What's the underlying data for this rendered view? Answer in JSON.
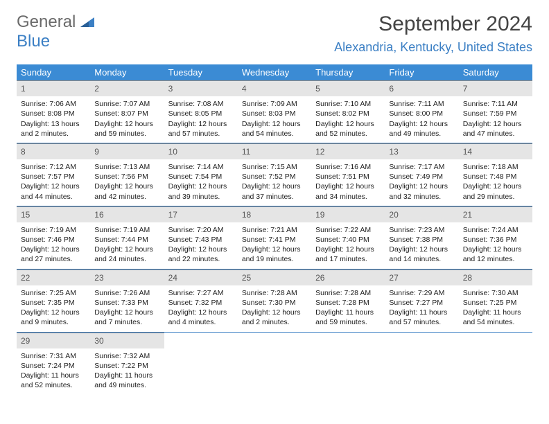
{
  "logo": {
    "word1": "General",
    "word2": "Blue",
    "color1": "#6a6a6a",
    "color2": "#3b7fc4"
  },
  "title": "September 2024",
  "location": "Alexandria, Kentucky, United States",
  "colors": {
    "header_bg": "#3b8bd4",
    "header_text": "#ffffff",
    "accent": "#3b7fc4",
    "daynum_bg": "#e5e5e5",
    "body_text": "#222222",
    "background": "#ffffff"
  },
  "fonts": {
    "title_size": 30,
    "location_size": 18,
    "dayheader_size": 13,
    "body_size": 10.5
  },
  "day_headers": [
    "Sunday",
    "Monday",
    "Tuesday",
    "Wednesday",
    "Thursday",
    "Friday",
    "Saturday"
  ],
  "days": [
    {
      "n": "1",
      "sunrise": "7:06 AM",
      "sunset": "8:08 PM",
      "daylight": "13 hours and 2 minutes."
    },
    {
      "n": "2",
      "sunrise": "7:07 AM",
      "sunset": "8:07 PM",
      "daylight": "12 hours and 59 minutes."
    },
    {
      "n": "3",
      "sunrise": "7:08 AM",
      "sunset": "8:05 PM",
      "daylight": "12 hours and 57 minutes."
    },
    {
      "n": "4",
      "sunrise": "7:09 AM",
      "sunset": "8:03 PM",
      "daylight": "12 hours and 54 minutes."
    },
    {
      "n": "5",
      "sunrise": "7:10 AM",
      "sunset": "8:02 PM",
      "daylight": "12 hours and 52 minutes."
    },
    {
      "n": "6",
      "sunrise": "7:11 AM",
      "sunset": "8:00 PM",
      "daylight": "12 hours and 49 minutes."
    },
    {
      "n": "7",
      "sunrise": "7:11 AM",
      "sunset": "7:59 PM",
      "daylight": "12 hours and 47 minutes."
    },
    {
      "n": "8",
      "sunrise": "7:12 AM",
      "sunset": "7:57 PM",
      "daylight": "12 hours and 44 minutes."
    },
    {
      "n": "9",
      "sunrise": "7:13 AM",
      "sunset": "7:56 PM",
      "daylight": "12 hours and 42 minutes."
    },
    {
      "n": "10",
      "sunrise": "7:14 AM",
      "sunset": "7:54 PM",
      "daylight": "12 hours and 39 minutes."
    },
    {
      "n": "11",
      "sunrise": "7:15 AM",
      "sunset": "7:52 PM",
      "daylight": "12 hours and 37 minutes."
    },
    {
      "n": "12",
      "sunrise": "7:16 AM",
      "sunset": "7:51 PM",
      "daylight": "12 hours and 34 minutes."
    },
    {
      "n": "13",
      "sunrise": "7:17 AM",
      "sunset": "7:49 PM",
      "daylight": "12 hours and 32 minutes."
    },
    {
      "n": "14",
      "sunrise": "7:18 AM",
      "sunset": "7:48 PM",
      "daylight": "12 hours and 29 minutes."
    },
    {
      "n": "15",
      "sunrise": "7:19 AM",
      "sunset": "7:46 PM",
      "daylight": "12 hours and 27 minutes."
    },
    {
      "n": "16",
      "sunrise": "7:19 AM",
      "sunset": "7:44 PM",
      "daylight": "12 hours and 24 minutes."
    },
    {
      "n": "17",
      "sunrise": "7:20 AM",
      "sunset": "7:43 PM",
      "daylight": "12 hours and 22 minutes."
    },
    {
      "n": "18",
      "sunrise": "7:21 AM",
      "sunset": "7:41 PM",
      "daylight": "12 hours and 19 minutes."
    },
    {
      "n": "19",
      "sunrise": "7:22 AM",
      "sunset": "7:40 PM",
      "daylight": "12 hours and 17 minutes."
    },
    {
      "n": "20",
      "sunrise": "7:23 AM",
      "sunset": "7:38 PM",
      "daylight": "12 hours and 14 minutes."
    },
    {
      "n": "21",
      "sunrise": "7:24 AM",
      "sunset": "7:36 PM",
      "daylight": "12 hours and 12 minutes."
    },
    {
      "n": "22",
      "sunrise": "7:25 AM",
      "sunset": "7:35 PM",
      "daylight": "12 hours and 9 minutes."
    },
    {
      "n": "23",
      "sunrise": "7:26 AM",
      "sunset": "7:33 PM",
      "daylight": "12 hours and 7 minutes."
    },
    {
      "n": "24",
      "sunrise": "7:27 AM",
      "sunset": "7:32 PM",
      "daylight": "12 hours and 4 minutes."
    },
    {
      "n": "25",
      "sunrise": "7:28 AM",
      "sunset": "7:30 PM",
      "daylight": "12 hours and 2 minutes."
    },
    {
      "n": "26",
      "sunrise": "7:28 AM",
      "sunset": "7:28 PM",
      "daylight": "11 hours and 59 minutes."
    },
    {
      "n": "27",
      "sunrise": "7:29 AM",
      "sunset": "7:27 PM",
      "daylight": "11 hours and 57 minutes."
    },
    {
      "n": "28",
      "sunrise": "7:30 AM",
      "sunset": "7:25 PM",
      "daylight": "11 hours and 54 minutes."
    },
    {
      "n": "29",
      "sunrise": "7:31 AM",
      "sunset": "7:24 PM",
      "daylight": "11 hours and 52 minutes."
    },
    {
      "n": "30",
      "sunrise": "7:32 AM",
      "sunset": "7:22 PM",
      "daylight": "11 hours and 49 minutes."
    }
  ],
  "labels": {
    "sunrise": "Sunrise:",
    "sunset": "Sunset:",
    "daylight": "Daylight:"
  }
}
